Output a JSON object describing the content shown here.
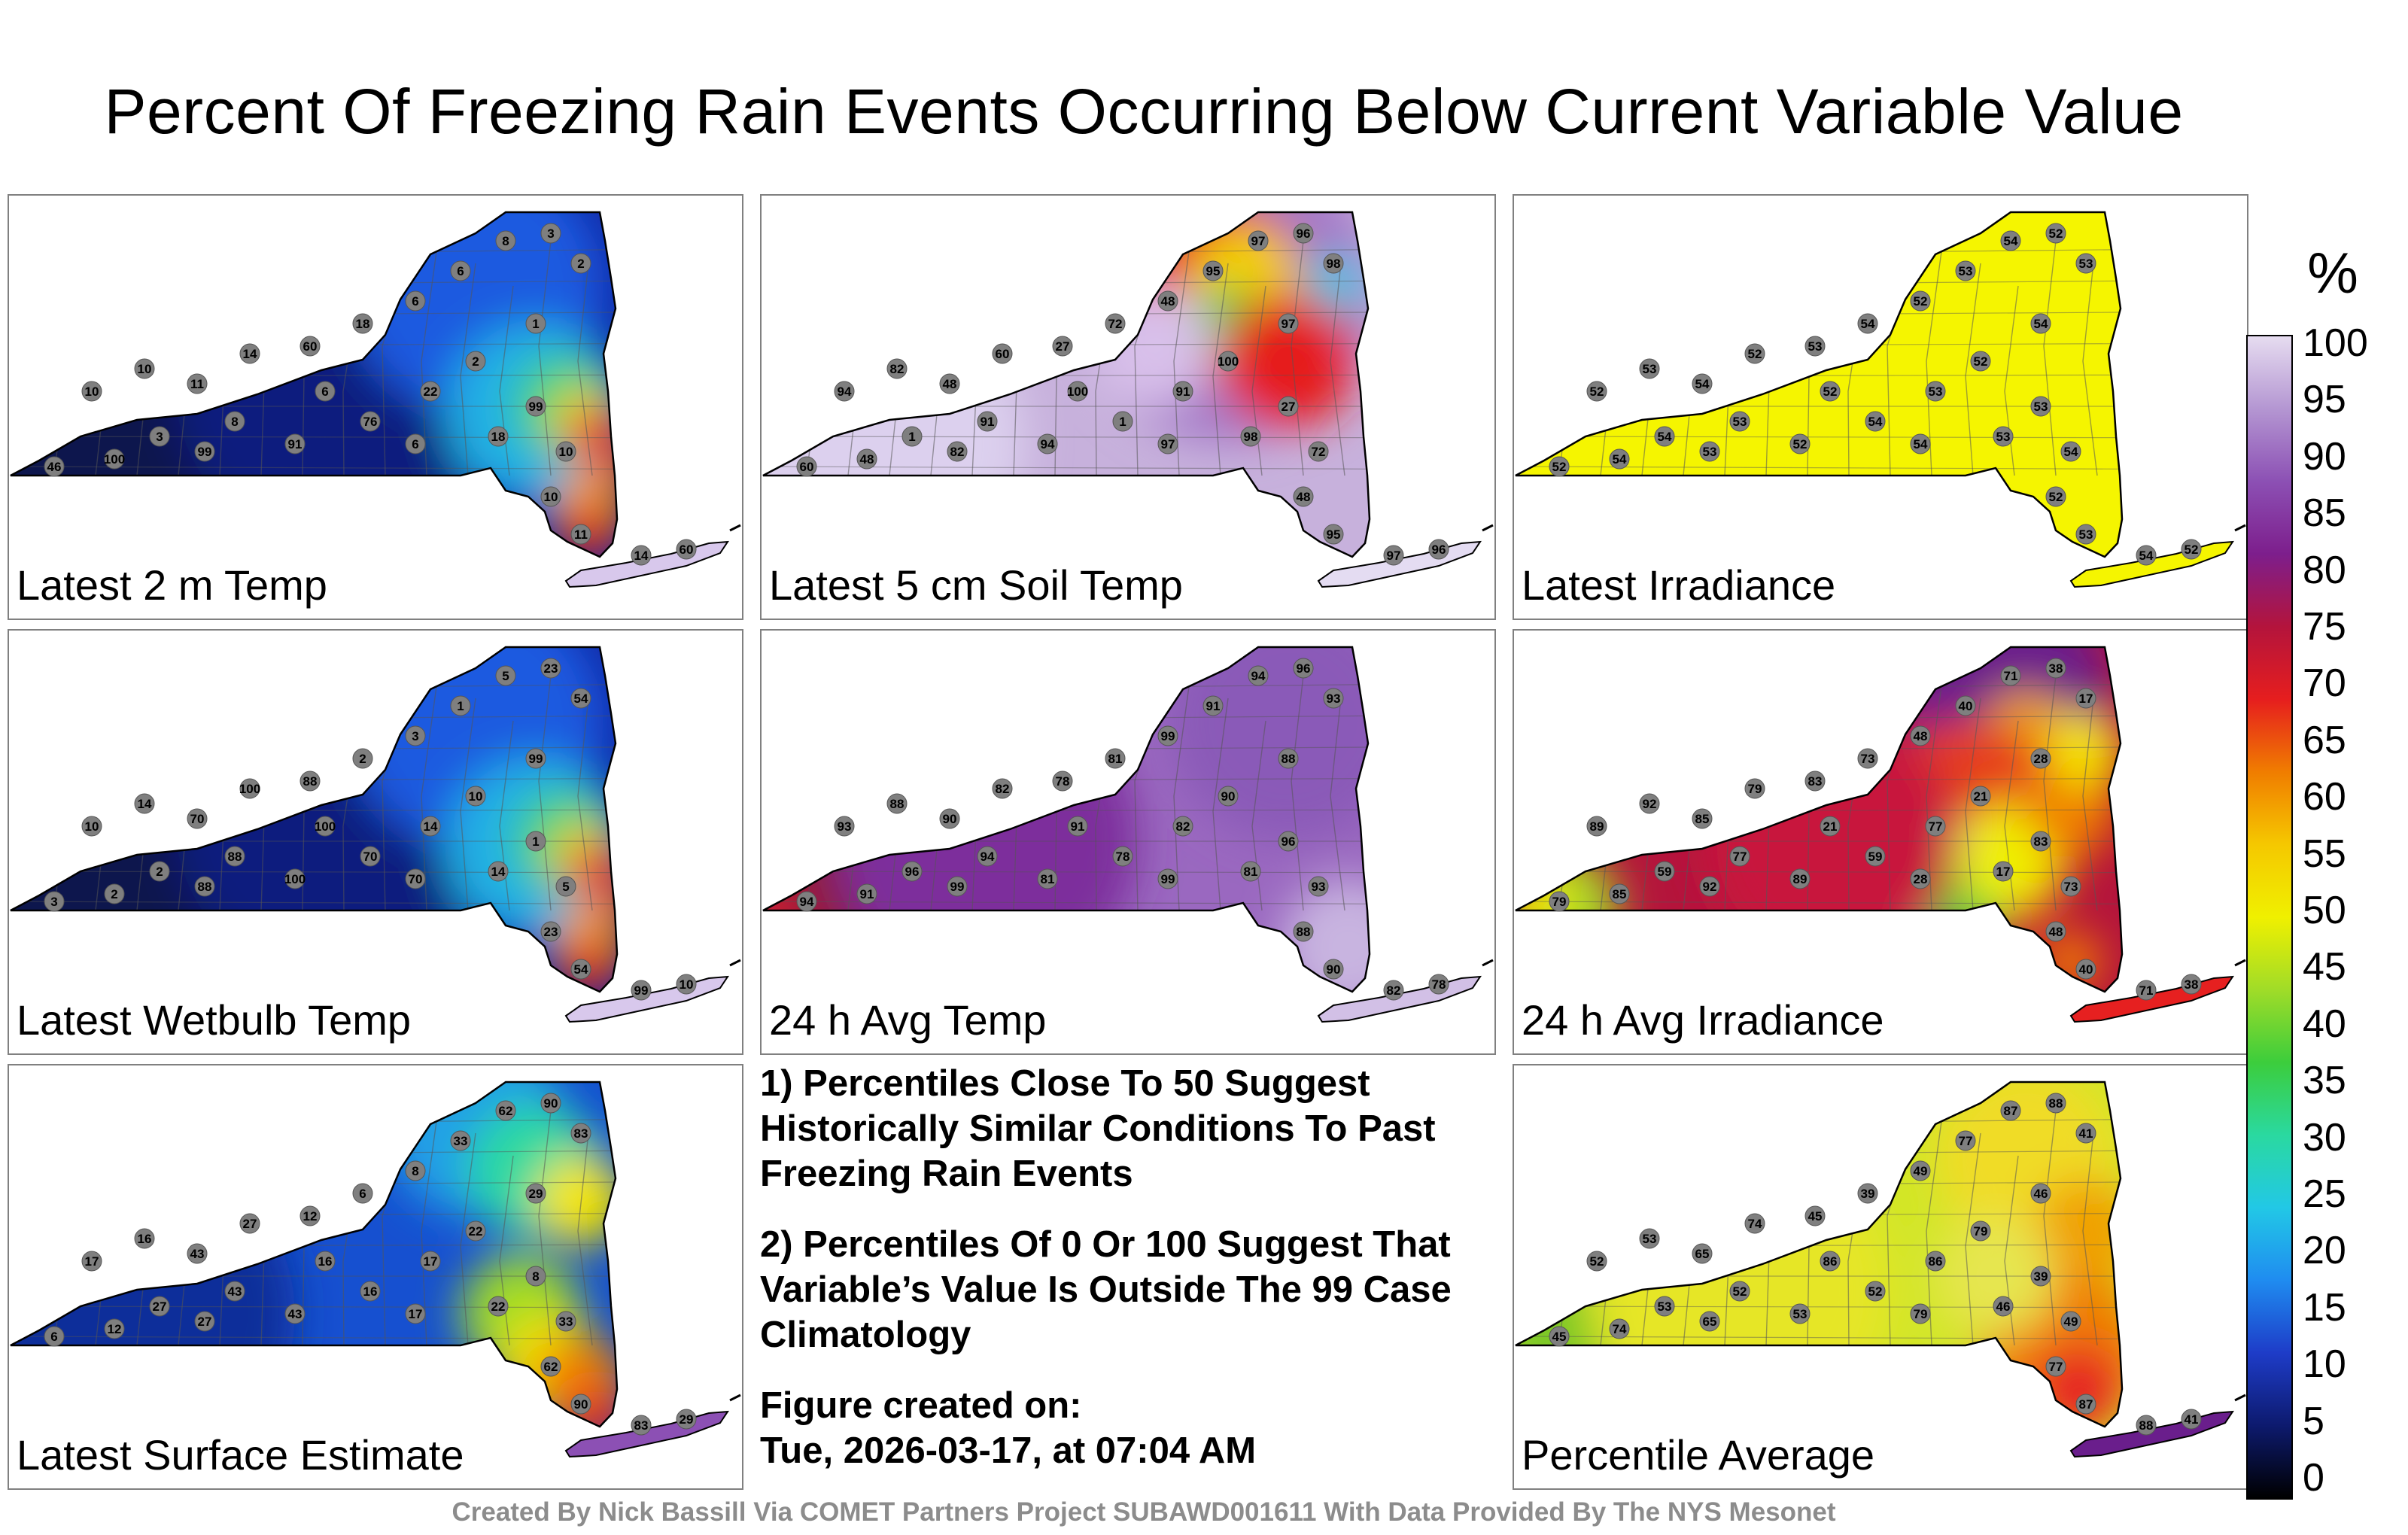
{
  "title": "Percent Of Freezing Rain Events Occurring Below Current Variable Value",
  "panels": [
    {
      "label": "Latest 2 m Temp",
      "scheme": "cold",
      "sample_values": [
        "10",
        "10",
        "11",
        "14",
        "60",
        "18",
        "6",
        "6",
        "8",
        "3",
        "2",
        "1",
        "2",
        "22",
        "76",
        "91",
        "99",
        "100",
        "46",
        "99"
      ]
    },
    {
      "label": "Latest 5 cm Soil Temp",
      "scheme": "soil",
      "sample_values": [
        "94",
        "82",
        "48",
        "60",
        "27",
        "72",
        "48",
        "95",
        "97",
        "96",
        "98",
        "97",
        "100",
        "91",
        "1"
      ]
    },
    {
      "label": "Latest Irradiance",
      "scheme": "yellow",
      "sample_values": [
        "52",
        "53",
        "54"
      ]
    },
    {
      "label": "Latest Wetbulb Temp",
      "scheme": "cold",
      "sample_values": [
        "10",
        "14",
        "70",
        "100",
        "88",
        "2",
        "3",
        "1",
        "5",
        "23",
        "54",
        "99"
      ]
    },
    {
      "label": "24 h Avg Temp",
      "scheme": "avgtemp",
      "sample_values": [
        "93",
        "88",
        "90",
        "82",
        "78",
        "81",
        "99",
        "91",
        "94",
        "96"
      ]
    },
    {
      "label": "24 h Avg Irradiance",
      "scheme": "irr24",
      "sample_values": [
        "89",
        "92",
        "85",
        "79",
        "83",
        "73",
        "48",
        "40",
        "71",
        "38",
        "17",
        "28",
        "21",
        "77",
        "59"
      ]
    },
    {
      "label": "Latest Surface Estimate",
      "scheme": "surface",
      "sample_values": [
        "17",
        "16",
        "43",
        "27",
        "12",
        "6",
        "8",
        "33",
        "62",
        "90",
        "83",
        "29",
        "22"
      ]
    },
    {
      "label": "Percentile Average",
      "scheme": "average",
      "sample_values": [
        "52",
        "53",
        "65",
        "74",
        "45",
        "39",
        "49",
        "77",
        "87",
        "88",
        "41",
        "46",
        "79",
        "86"
      ]
    }
  ],
  "notes": [
    "1) Percentiles Close To 50 Suggest Historically Similar Conditions To Past Freezing Rain Events",
    "2) Percentiles Of 0 Or 100 Suggest That Variable’s Value Is Outside The 99 Case Climatology",
    "Figure created on:",
    "Tue, 2026-03-17, at 07:04 AM"
  ],
  "colorbar": {
    "unit": "%",
    "ticks": [
      "100",
      "95",
      "90",
      "85",
      "80",
      "75",
      "70",
      "65",
      "60",
      "55",
      "50",
      "45",
      "40",
      "35",
      "30",
      "25",
      "20",
      "15",
      "10",
      "5",
      "0"
    ],
    "colors": [
      "#000000",
      "#0d1a6e",
      "#1e3cc8",
      "#1f8cf0",
      "#22c8e6",
      "#2ad9a0",
      "#3ccd3c",
      "#a0dc28",
      "#f0f000",
      "#f5c800",
      "#f07d00",
      "#e61e1e",
      "#b4143c",
      "#7d1e8c",
      "#8c50b4",
      "#b496d2",
      "#e6dcf0"
    ]
  },
  "footer": "Created By Nick Bassill Via COMET Partners Project SUBAWD001611 With Data Provided By The NYS Mesonet"
}
